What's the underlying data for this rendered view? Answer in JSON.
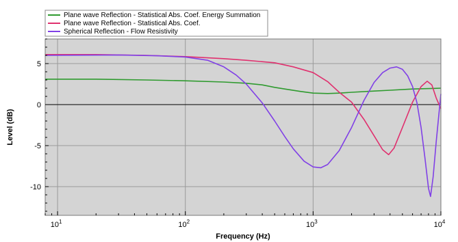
{
  "chart_data": {
    "type": "line",
    "xlabel": "Frequency (Hz)",
    "ylabel": "Level (dB)",
    "x_scale": "log",
    "xlim": [
      8,
      10000
    ],
    "ylim": [
      -13.5,
      8
    ],
    "y_ticks": [
      5,
      0,
      -5,
      -10
    ],
    "y_tick_labels": [
      "5",
      "0",
      "-5",
      "-10"
    ],
    "x_major_ticks": [
      10,
      100,
      1000,
      10000
    ],
    "x_tick_base": "10",
    "x_tick_exponents": [
      "1",
      "2",
      "3",
      "4"
    ],
    "grid": true,
    "legend_position": "top-left",
    "series": [
      {
        "name": "Plane wave Reflection - Statistical Abs. Coef. Energy Summation",
        "color": "#2e9a2e",
        "points": [
          [
            8,
            3.1
          ],
          [
            20,
            3.1
          ],
          [
            50,
            3.0
          ],
          [
            100,
            2.9
          ],
          [
            200,
            2.75
          ],
          [
            300,
            2.6
          ],
          [
            400,
            2.4
          ],
          [
            500,
            2.1
          ],
          [
            600,
            1.9
          ],
          [
            800,
            1.6
          ],
          [
            1000,
            1.4
          ],
          [
            1300,
            1.35
          ],
          [
            1600,
            1.4
          ],
          [
            2000,
            1.5
          ],
          [
            3000,
            1.65
          ],
          [
            4000,
            1.75
          ],
          [
            6000,
            1.9
          ],
          [
            8000,
            1.95
          ],
          [
            10000,
            2.0
          ]
        ]
      },
      {
        "name": "Plane wave Reflection - Statistical Abs. Coef.",
        "color": "#e0306e",
        "points": [
          [
            8,
            6.1
          ],
          [
            20,
            6.1
          ],
          [
            50,
            6.0
          ],
          [
            100,
            5.85
          ],
          [
            200,
            5.6
          ],
          [
            300,
            5.4
          ],
          [
            500,
            5.1
          ],
          [
            700,
            4.6
          ],
          [
            1000,
            3.9
          ],
          [
            1300,
            2.8
          ],
          [
            1600,
            1.5
          ],
          [
            2000,
            0.3
          ],
          [
            2500,
            -1.8
          ],
          [
            3000,
            -3.8
          ],
          [
            3500,
            -5.5
          ],
          [
            3900,
            -6.1
          ],
          [
            4300,
            -5.3
          ],
          [
            5000,
            -2.8
          ],
          [
            6000,
            0.3
          ],
          [
            7000,
            2.2
          ],
          [
            7800,
            2.85
          ],
          [
            8500,
            2.4
          ],
          [
            9200,
            0.8
          ],
          [
            10000,
            -0.5
          ]
        ]
      },
      {
        "name": "Spherical Reflection - Flow Resistivity",
        "color": "#8040e6",
        "points": [
          [
            8,
            6.0
          ],
          [
            30,
            6.05
          ],
          [
            60,
            5.95
          ],
          [
            100,
            5.8
          ],
          [
            150,
            5.4
          ],
          [
            200,
            4.6
          ],
          [
            250,
            3.6
          ],
          [
            300,
            2.5
          ],
          [
            400,
            0.2
          ],
          [
            500,
            -2.0
          ],
          [
            600,
            -3.9
          ],
          [
            700,
            -5.4
          ],
          [
            850,
            -6.9
          ],
          [
            1000,
            -7.6
          ],
          [
            1150,
            -7.7
          ],
          [
            1300,
            -7.3
          ],
          [
            1600,
            -5.6
          ],
          [
            2000,
            -2.8
          ],
          [
            2500,
            0.5
          ],
          [
            3000,
            2.7
          ],
          [
            3500,
            3.9
          ],
          [
            4000,
            4.45
          ],
          [
            4500,
            4.6
          ],
          [
            5000,
            4.3
          ],
          [
            5500,
            3.5
          ],
          [
            6000,
            2.2
          ],
          [
            6500,
            0.2
          ],
          [
            7000,
            -2.8
          ],
          [
            7500,
            -6.5
          ],
          [
            8000,
            -10.2
          ],
          [
            8300,
            -11.2
          ],
          [
            8700,
            -8.8
          ],
          [
            9200,
            -4.5
          ],
          [
            9600,
            -1.5
          ],
          [
            10000,
            1.3
          ]
        ]
      }
    ]
  }
}
